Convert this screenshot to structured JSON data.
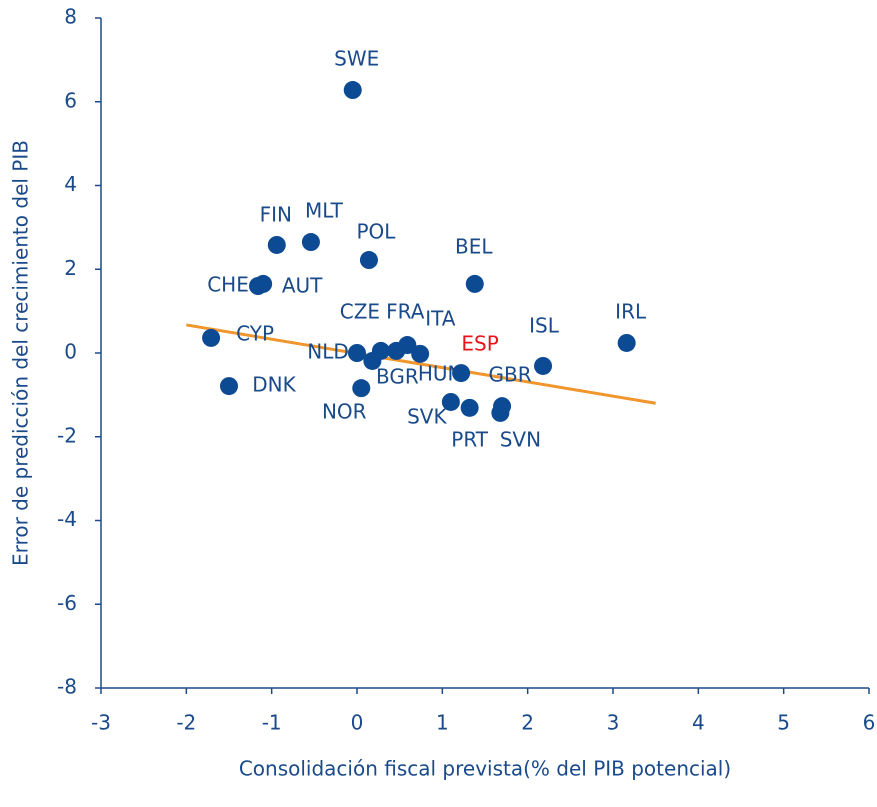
{
  "chart_data": {
    "type": "scatter",
    "xlabel": "Consolidación  fiscal prevista(% del PIB potencial)",
    "ylabel": "Error de predicción del crecimiento del PIB",
    "xlim": [
      -3,
      6
    ],
    "xticks": [
      -3,
      -2,
      -1,
      0,
      1,
      2,
      3,
      4,
      5,
      6
    ],
    "ylim": [
      -8,
      8
    ],
    "yticks": [
      -8,
      -6,
      -4,
      -2,
      0,
      2,
      4,
      6,
      8
    ],
    "series": [
      {
        "color": "#0d4a94",
        "labels": [
          "SWE",
          "FIN",
          "MLT",
          "POL",
          "BEL",
          "CHE",
          "AUT",
          "CYP",
          "DNK",
          "NLD",
          "CZE",
          "FRA",
          "ITA",
          "HUN",
          "BGR",
          "NOR",
          "ESP",
          "ISL",
          "IRL",
          "GBR",
          "SVK",
          "PRT",
          "SVN"
        ],
        "x": [
          -0.05,
          -0.94,
          -0.54,
          0.14,
          1.38,
          -1.16,
          -1.1,
          -1.71,
          -1.5,
          0.0,
          0.28,
          0.46,
          0.59,
          0.74,
          0.18,
          0.05,
          1.22,
          2.18,
          3.16,
          1.7,
          1.1,
          1.32,
          1.68
        ],
        "values": [
          6.28,
          2.58,
          2.65,
          2.22,
          1.65,
          1.6,
          1.65,
          0.36,
          -0.79,
          0.0,
          0.05,
          0.05,
          0.19,
          -0.02,
          -0.19,
          -0.84,
          -0.48,
          -0.31,
          0.24,
          -1.27,
          -1.17,
          -1.31,
          -1.43
        ]
      }
    ],
    "label_color": "#1a4a8a",
    "highlight_index": 16,
    "highlight_color": "#e8141c",
    "trendline": {
      "color": "#f0962d",
      "x": [
        -2,
        3.5
      ],
      "values": [
        0.67,
        -1.2
      ]
    }
  }
}
